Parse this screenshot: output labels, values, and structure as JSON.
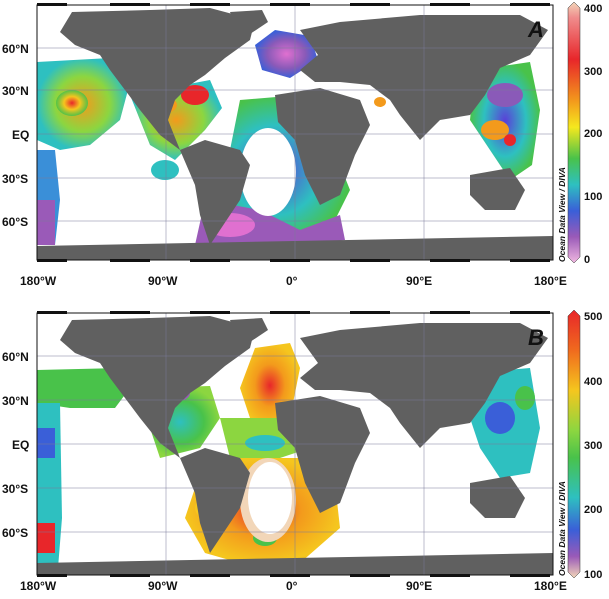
{
  "colors": {
    "land": "#606060",
    "ocean": "#ffffff",
    "grid": "#666666",
    "frame": "#111111"
  },
  "panels": [
    {
      "label": "A",
      "lat_labels": [
        "60°N",
        "30°N",
        "EQ",
        "30°S",
        "60°S"
      ],
      "lon_labels": [
        "180°W",
        "90°W",
        "0°",
        "90°E",
        "180°E"
      ],
      "colorbar": {
        "ticks": [
          "400",
          "300",
          "200",
          "100",
          "0"
        ],
        "credit": "Ocean Data View / DIVA"
      }
    },
    {
      "label": "B",
      "lat_labels": [
        "60°N",
        "30°N",
        "EQ",
        "30°S",
        "60°S"
      ],
      "lon_labels": [
        "180°W",
        "90°W",
        "0°",
        "90°E",
        "180°E"
      ],
      "colorbar": {
        "ticks": [
          "500",
          "400",
          "300",
          "200",
          "100"
        ],
        "credit": "Ocean Data View / DIVA"
      }
    }
  ]
}
